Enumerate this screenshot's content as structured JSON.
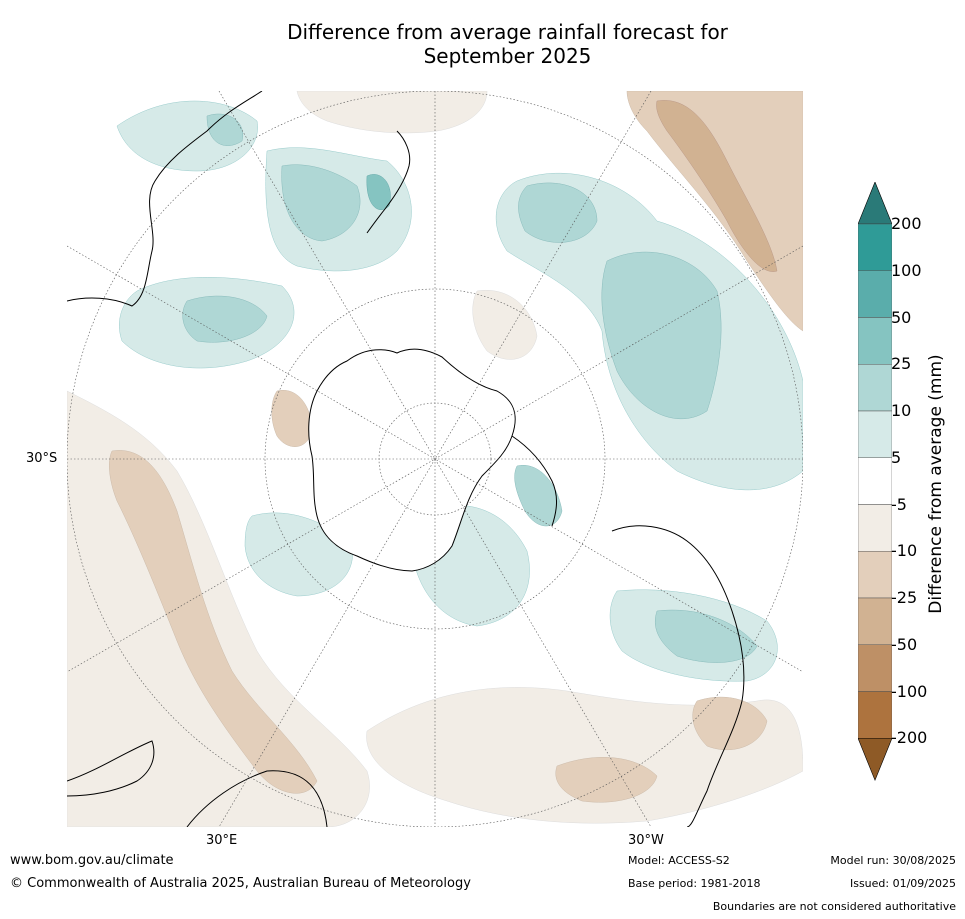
{
  "title": {
    "line1": "Difference from average rainfall forecast for",
    "line2": "September 2025"
  },
  "map": {
    "projection": "south-polar-stereographic",
    "latitude_labels": [
      "30°S"
    ],
    "longitude_labels": [
      "30°E",
      "30°W"
    ]
  },
  "legend": {
    "title": "Difference from average (mm)",
    "tick_labels": [
      "200",
      "100",
      "50",
      "25",
      "10",
      "5",
      "-5",
      "-10",
      "-25",
      "-50",
      "-100",
      "-200"
    ],
    "bins": [
      {
        "range": ">200",
        "color": "#2a7a78"
      },
      {
        "range": "100 to 200",
        "color": "#2f9b97"
      },
      {
        "range": "50 to 100",
        "color": "#5aadab"
      },
      {
        "range": "25 to 50",
        "color": "#85c4c1"
      },
      {
        "range": "10 to 25",
        "color": "#afd7d5"
      },
      {
        "range": "5 to 10",
        "color": "#d6eae8"
      },
      {
        "range": "-5 to 5",
        "color": "#ffffff"
      },
      {
        "range": "-10 to -5",
        "color": "#f2ede6"
      },
      {
        "range": "-25 to -10",
        "color": "#e3cfbb"
      },
      {
        "range": "-50 to -25",
        "color": "#d1b292"
      },
      {
        "range": "-100 to -50",
        "color": "#be9066"
      },
      {
        "range": "-200 to -100",
        "color": "#ad733e"
      },
      {
        "range": "<-200",
        "color": "#8e5a26"
      }
    ]
  },
  "footer": {
    "website": "www.bom.gov.au/climate",
    "copyright": "© Commonwealth of Australia 2025, Australian Bureau of Meteorology",
    "model": "Model: ACCESS-S2",
    "base_period": "Base period: 1981-2018",
    "model_run": "Model run: 30/08/2025",
    "issued": "Issued: 01/09/2025",
    "disclaimer": "Boundaries are not considered authoritative"
  }
}
